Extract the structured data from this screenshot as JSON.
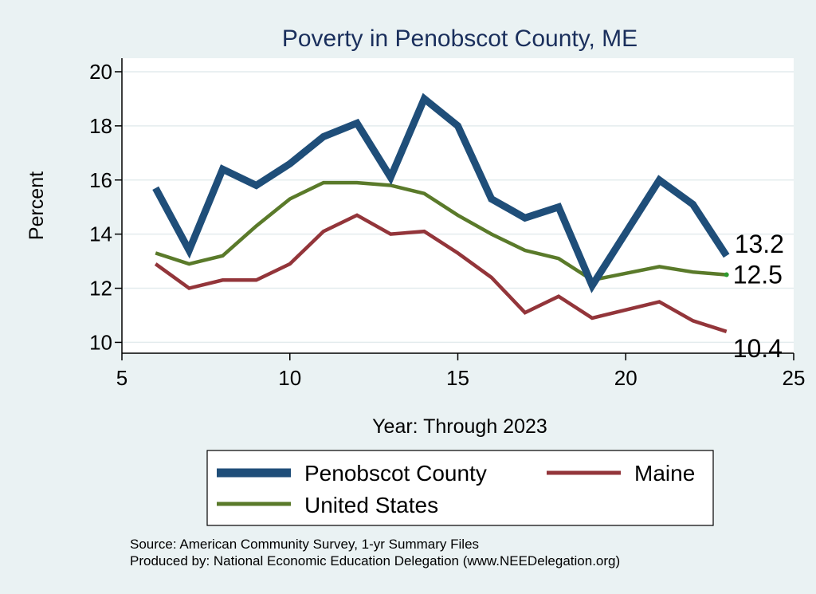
{
  "chart_data": {
    "type": "line",
    "title": "Poverty in Penobscot County, ME",
    "xlabel": "Year: Through 2023",
    "ylabel": "Percent",
    "xlim": [
      5,
      25
    ],
    "ylim": [
      9.6,
      20.5
    ],
    "xticks": [
      5,
      10,
      15,
      20,
      25
    ],
    "yticks": [
      10,
      12,
      14,
      16,
      18,
      20
    ],
    "grid": true,
    "legend_position": "bottom",
    "series": [
      {
        "name": "Penobscot County",
        "color": "#1f4e79",
        "x": [
          6,
          7,
          8,
          9,
          10,
          11,
          12,
          13,
          14,
          15,
          16,
          17,
          18,
          19,
          21,
          22,
          23
        ],
        "values": [
          15.7,
          13.4,
          16.4,
          15.8,
          16.6,
          17.6,
          18.1,
          16.1,
          19.0,
          18.0,
          15.3,
          14.6,
          15.0,
          12.1,
          16.0,
          15.1,
          13.2
        ],
        "end_label": "13.2"
      },
      {
        "name": "Maine",
        "color": "#93353a",
        "x": [
          6,
          7,
          8,
          9,
          10,
          11,
          12,
          13,
          14,
          15,
          16,
          17,
          18,
          19,
          21,
          22,
          23
        ],
        "values": [
          12.9,
          12.0,
          12.3,
          12.3,
          12.9,
          14.1,
          14.7,
          14.0,
          14.1,
          13.3,
          12.4,
          11.1,
          11.7,
          10.9,
          11.5,
          10.8,
          10.4
        ],
        "end_label": "10.4"
      },
      {
        "name": "United States",
        "color": "#5a7a2a",
        "x": [
          6,
          7,
          8,
          9,
          10,
          11,
          12,
          13,
          14,
          15,
          16,
          17,
          18,
          19,
          21,
          22,
          23
        ],
        "values": [
          13.3,
          12.9,
          13.2,
          14.3,
          15.3,
          15.9,
          15.9,
          15.8,
          15.5,
          14.7,
          14.0,
          13.4,
          13.1,
          12.3,
          12.8,
          12.6,
          12.5
        ],
        "end_label": "12.5"
      }
    ]
  },
  "legend": {
    "penobscot": "Penobscot County",
    "maine": "Maine",
    "us": "United States"
  },
  "notes": {
    "source": "Source: American Community Survey, 1-yr Summary Files",
    "produced_by": "Produced by: National Economic Education Delegation (www.NEEDelegation.org)"
  }
}
